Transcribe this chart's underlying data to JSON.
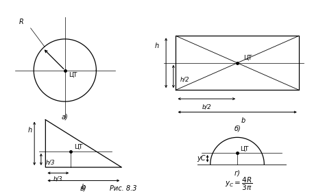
{
  "title": "Рис. 8.3",
  "background_color": "#ffffff",
  "line_color": "#000000",
  "label_a": "а)",
  "label_b": "б)",
  "label_c": "в)",
  "label_d": "г)",
  "ct_label": "ЦТ",
  "R_label": "R",
  "h_label": "h",
  "h2_label": "h/2",
  "b2_label": "b/2",
  "b_label": "b",
  "h3_label": "h/3",
  "b3_label": "b/3",
  "yc_label": "yС",
  "yc_formula": "$y_C = \\dfrac{4R}{3\\pi}$"
}
